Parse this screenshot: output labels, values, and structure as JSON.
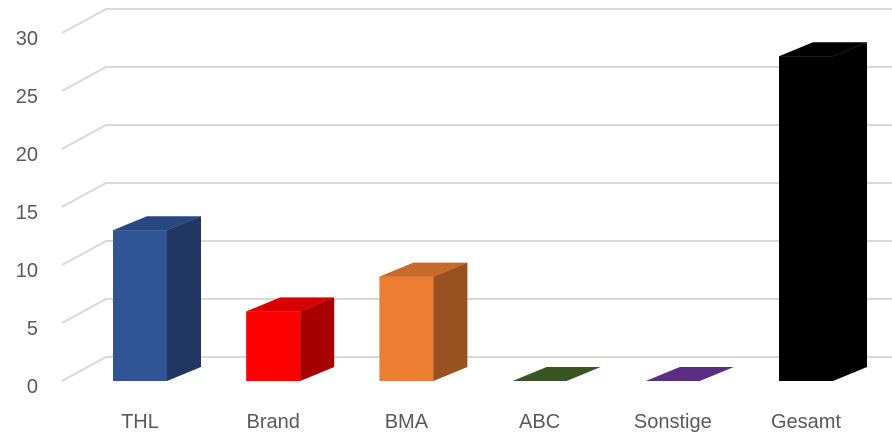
{
  "chart_data": {
    "type": "bar",
    "style": "3d-column",
    "title": "",
    "xlabel": "",
    "ylabel": "",
    "categories": [
      "THL",
      "Brand",
      "BMA",
      "ABC",
      "Sonstige",
      "Gesamt"
    ],
    "values": [
      13,
      6,
      9,
      0,
      0,
      28
    ],
    "colors": [
      "#2F5597",
      "#FF0000",
      "#ED7D31",
      "#375623",
      "#5A2D82",
      "#000000"
    ],
    "ylim": [
      0,
      30
    ],
    "yticks": [
      "0",
      "5",
      "10",
      "15",
      "20",
      "25",
      "30"
    ],
    "grid": true,
    "legend": "none"
  }
}
